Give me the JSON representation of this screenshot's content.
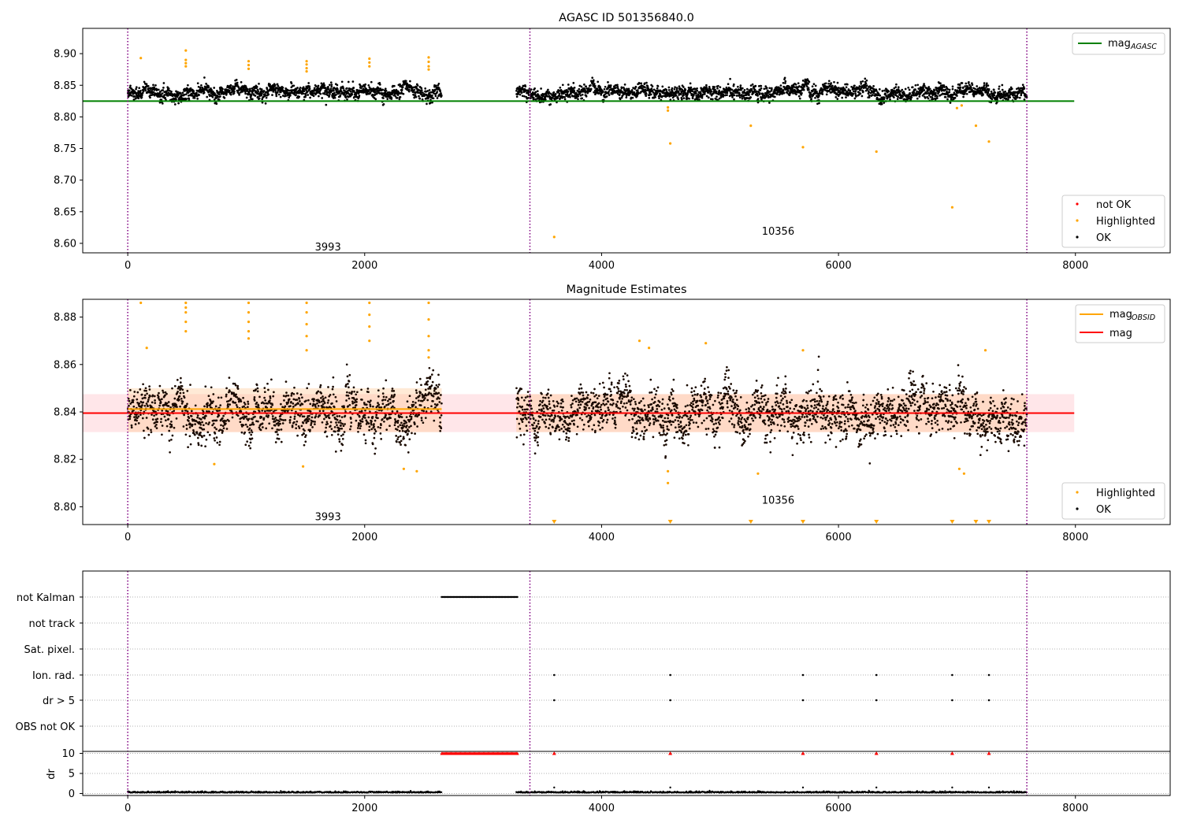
{
  "chart_data": [
    {
      "type": "scatter",
      "title": "AGASC ID 501356840.0",
      "xlim": [
        -380,
        8800
      ],
      "ylim": [
        8.585,
        8.94
      ],
      "x_ticks": [
        "0",
        "2000",
        "4000",
        "6000",
        "8000"
      ],
      "y_ticks": [
        "8.60",
        "8.65",
        "8.70",
        "8.75",
        "8.80",
        "8.85",
        "8.90"
      ],
      "x_tick_values": [
        0,
        2000,
        4000,
        6000,
        8000
      ],
      "y_tick_values": [
        8.6,
        8.65,
        8.7,
        8.75,
        8.8,
        8.85,
        8.9
      ],
      "obsid_boundaries": [
        0,
        3395,
        7590
      ],
      "obsid_labels": [
        {
          "text": "3993",
          "x": 1690,
          "y": 8.595
        },
        {
          "text": "10356",
          "x": 5490,
          "y": 8.62
        }
      ],
      "mag_agasc": 8.825,
      "mag_agasc_range": [
        -380,
        7990
      ],
      "ok_segments": [
        {
          "x0": 0,
          "x1": 2650,
          "mean": 8.839,
          "spread": 0.009
        },
        {
          "x0": 3280,
          "x1": 7590,
          "mean": 8.839,
          "spread": 0.009
        }
      ],
      "highlighted_points": [
        [
          110,
          8.893
        ],
        [
          490,
          8.905
        ],
        [
          490,
          8.89
        ],
        [
          490,
          8.885
        ],
        [
          490,
          8.88
        ],
        [
          1020,
          8.888
        ],
        [
          1020,
          8.882
        ],
        [
          1020,
          8.876
        ],
        [
          1510,
          8.888
        ],
        [
          1510,
          8.883
        ],
        [
          1510,
          8.877
        ],
        [
          1510,
          8.872
        ],
        [
          2040,
          8.892
        ],
        [
          2040,
          8.886
        ],
        [
          2040,
          8.88
        ],
        [
          2540,
          8.894
        ],
        [
          2540,
          8.887
        ],
        [
          2540,
          8.88
        ],
        [
          2540,
          8.875
        ],
        [
          3600,
          8.61
        ],
        [
          4580,
          8.758
        ],
        [
          5260,
          8.786
        ],
        [
          5700,
          8.752
        ],
        [
          6320,
          8.745
        ],
        [
          6960,
          8.657
        ],
        [
          7160,
          8.786
        ],
        [
          7270,
          8.761
        ],
        [
          4560,
          8.81
        ],
        [
          4560,
          8.815
        ],
        [
          7000,
          8.814
        ],
        [
          7040,
          8.818
        ]
      ],
      "legend_top": [
        {
          "label": "mag",
          "sub": "AGASC",
          "color": "#008000"
        }
      ],
      "legend_bottom": [
        {
          "label": "not OK",
          "color": "#ff0000"
        },
        {
          "label": "Highlighted",
          "color": "#ffa500"
        },
        {
          "label": "OK",
          "color": "#000000"
        }
      ]
    },
    {
      "type": "scatter",
      "title": "Magnitude Estimates",
      "xlim": [
        -380,
        8800
      ],
      "ylim": [
        8.7925,
        8.8875
      ],
      "x_ticks": [
        "0",
        "2000",
        "4000",
        "6000",
        "8000"
      ],
      "y_ticks": [
        "8.80",
        "8.82",
        "8.84",
        "8.86",
        "8.88"
      ],
      "x_tick_values": [
        0,
        2000,
        4000,
        6000,
        8000
      ],
      "y_tick_values": [
        8.8,
        8.82,
        8.84,
        8.86,
        8.88
      ],
      "obsid_boundaries": [
        0,
        3395,
        7590
      ],
      "obsid_labels": [
        {
          "text": "3993",
          "x": 1690,
          "y": 8.796
        },
        {
          "text": "10356",
          "x": 5490,
          "y": 8.803
        }
      ],
      "mag_line": {
        "value": 8.8395,
        "band": [
          8.8315,
          8.8475
        ],
        "range": [
          -380,
          7990
        ],
        "color": "#ff0000"
      },
      "mag_obsid": [
        {
          "x0": 0,
          "x1": 2650,
          "value": 8.8412,
          "band": [
            8.8315,
            8.85
          ]
        },
        {
          "x0": 3280,
          "x1": 7590,
          "value": 8.8395,
          "band": [
            8.8315,
            8.8475
          ]
        }
      ],
      "ok_segments": [
        {
          "x0": 0,
          "x1": 2650,
          "mean": 8.84,
          "spread": 0.008
        },
        {
          "x0": 3280,
          "x1": 7590,
          "mean": 8.839,
          "spread": 0.008
        }
      ],
      "highlighted_points": [
        [
          110,
          8.886
        ],
        [
          160,
          8.867
        ],
        [
          490,
          8.886
        ],
        [
          490,
          8.884
        ],
        [
          490,
          8.882
        ],
        [
          490,
          8.878
        ],
        [
          490,
          8.874
        ],
        [
          1020,
          8.886
        ],
        [
          1020,
          8.882
        ],
        [
          1020,
          8.878
        ],
        [
          1020,
          8.874
        ],
        [
          1020,
          8.871
        ],
        [
          1510,
          8.886
        ],
        [
          1510,
          8.882
        ],
        [
          1510,
          8.877
        ],
        [
          1510,
          8.872
        ],
        [
          1510,
          8.866
        ],
        [
          2040,
          8.886
        ],
        [
          2040,
          8.881
        ],
        [
          2040,
          8.876
        ],
        [
          2040,
          8.87
        ],
        [
          2540,
          8.886
        ],
        [
          2540,
          8.879
        ],
        [
          2540,
          8.872
        ],
        [
          2540,
          8.866
        ],
        [
          2540,
          8.863
        ],
        [
          4320,
          8.87
        ],
        [
          4400,
          8.867
        ],
        [
          4880,
          8.869
        ],
        [
          5700,
          8.866
        ],
        [
          7240,
          8.866
        ],
        [
          4560,
          8.81
        ],
        [
          4560,
          8.815
        ],
        [
          5320,
          8.814
        ],
        [
          7020,
          8.816
        ],
        [
          7060,
          8.814
        ],
        [
          2440,
          8.815
        ],
        [
          2330,
          8.816
        ],
        [
          730,
          8.818
        ],
        [
          1480,
          8.817
        ]
      ],
      "clipped_low_markers": [
        3600,
        4580,
        5260,
        5700,
        6320,
        6960,
        7160,
        7270
      ],
      "legend_top": [
        {
          "label": "mag",
          "sub": "OBSID",
          "color": "#ffa500"
        },
        {
          "label": "mag",
          "sub": "",
          "color": "#ff0000"
        }
      ],
      "legend_bottom": [
        {
          "label": "Highlighted",
          "color": "#ffa500"
        },
        {
          "label": "OK",
          "color": "#000000"
        }
      ]
    },
    {
      "type": "scatter",
      "title": "",
      "xlim": [
        -380,
        8800
      ],
      "x_ticks": [
        "0",
        "2000",
        "4000",
        "6000",
        "8000"
      ],
      "x_tick_values": [
        0,
        2000,
        4000,
        6000,
        8000
      ],
      "obsid_boundaries": [
        0,
        3395,
        7590
      ],
      "flag_rows": [
        "not Kalman",
        "not track",
        "Sat. pixel.",
        "Ion. rad.",
        "dr > 5",
        "OBS not OK"
      ],
      "not_kalman_range": [
        2650,
        3290
      ],
      "flag_points": {
        "Ion. rad.": [
          3600,
          4580,
          5700,
          6320,
          6960,
          7270
        ],
        "dr > 5": [
          3600,
          4580,
          5700,
          6320,
          6960,
          7270
        ]
      },
      "dr_ylabel": "dr",
      "dr_ylim": [
        -0.5,
        10.5
      ],
      "dr_ticks": [
        "0",
        "5",
        "10"
      ],
      "dr_tick_values": [
        0,
        5,
        10
      ],
      "dr_clipped_range": [
        2650,
        3290
      ],
      "dr_clipped_points": [
        3600,
        4580,
        5700,
        6320,
        6960,
        7270
      ],
      "dr_segments": [
        {
          "x0": 0,
          "x1": 2650,
          "mean": 0.2
        },
        {
          "x0": 3280,
          "x1": 7590,
          "mean": 0.2
        }
      ]
    }
  ]
}
